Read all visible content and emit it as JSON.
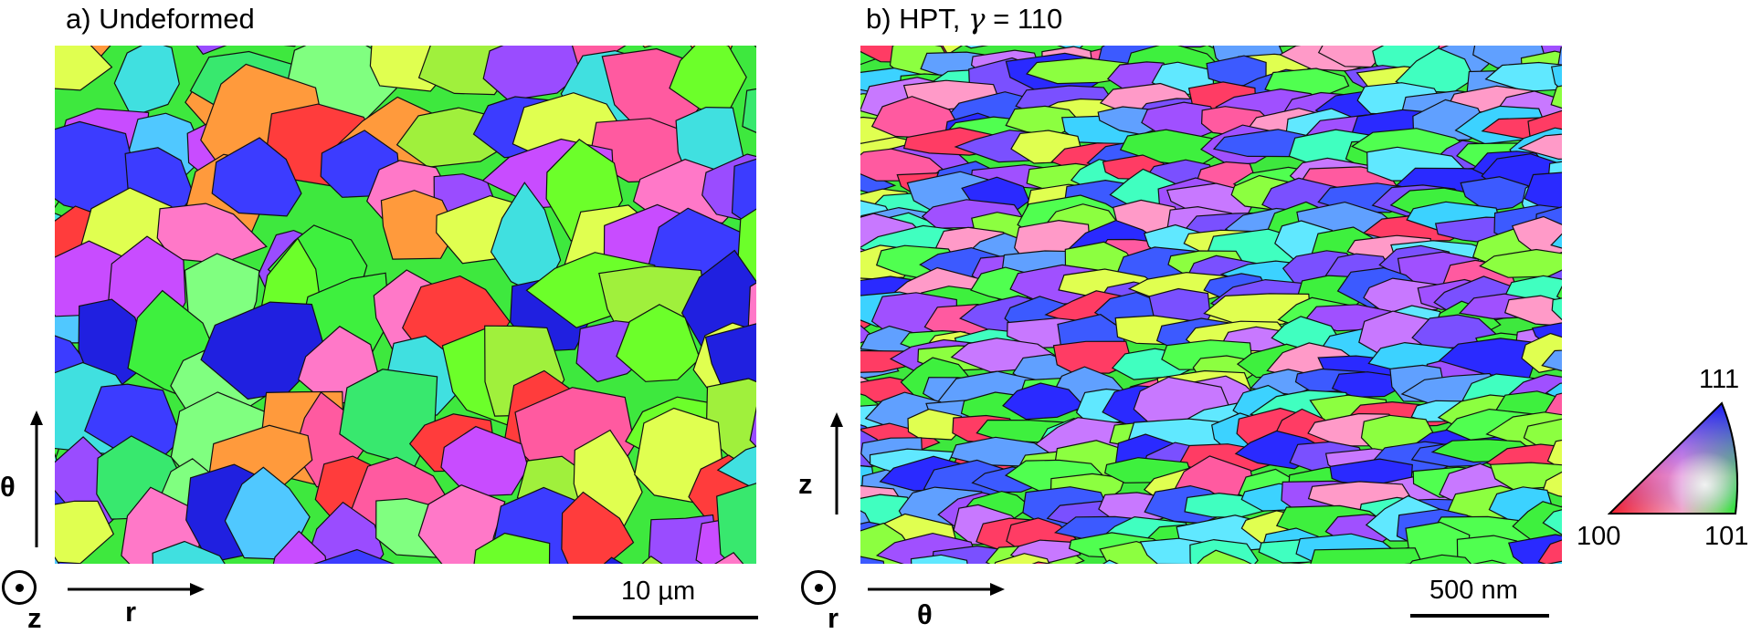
{
  "panels": [
    {
      "title": "a) Undeformed",
      "vertical_axis": "θ",
      "horizontal_axis": "r",
      "normal_axis": "z",
      "scale_bar": "10 µm",
      "grain_style": "coarse"
    },
    {
      "title_prefix": "b) HPT, ",
      "title_gamma": "γ",
      "title_suffix": " = 110",
      "vertical_axis": "z",
      "horizontal_axis": "θ",
      "normal_axis": "r",
      "scale_bar": "500 nm",
      "grain_style": "fine-elongated"
    }
  ],
  "legend": {
    "top": "111",
    "left": "100",
    "right": "101",
    "colors": {
      "100": "#ff0000",
      "101": "#00ff00",
      "111": "#0000ff"
    }
  }
}
